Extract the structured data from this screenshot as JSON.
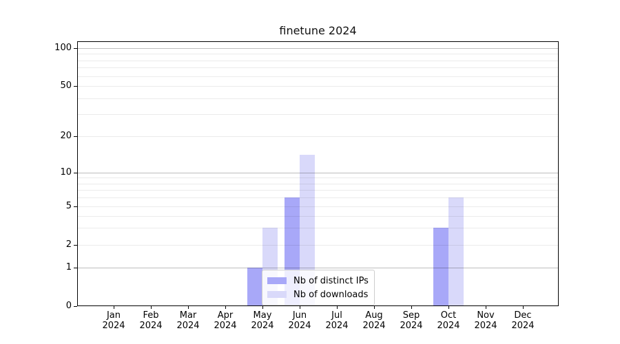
{
  "chart_data": {
    "type": "bar",
    "title": "finetune 2024",
    "months": [
      "Jan",
      "Feb",
      "Mar",
      "Apr",
      "May",
      "Jun",
      "Jul",
      "Aug",
      "Sep",
      "Oct",
      "Nov",
      "Dec"
    ],
    "year_label": "2024",
    "series": [
      {
        "name": "Nb of distinct IPs",
        "slug": "distinct-ips",
        "color": "#a8a8f8",
        "values": [
          0,
          0,
          0,
          0,
          1,
          6,
          0,
          0,
          0,
          3,
          0,
          0
        ]
      },
      {
        "name": "Nb of downloads",
        "slug": "downloads",
        "color": "#d9d9fa",
        "values": [
          0,
          0,
          0,
          0,
          3,
          14,
          0,
          0,
          0,
          6,
          0,
          0
        ]
      }
    ],
    "yticks": [
      0,
      1,
      2,
      5,
      10,
      20,
      50,
      100
    ],
    "minor_yticks": [
      3,
      4,
      6,
      7,
      8,
      9,
      30,
      40,
      60,
      70,
      80,
      90
    ],
    "major_grid_values": [
      1,
      10,
      100
    ],
    "yscale": "log-like",
    "ylim": [
      0,
      100
    ],
    "grid": true,
    "legend_location": "lower center"
  },
  "colors": {
    "bar_distinct_ips": "#a8a8f8",
    "bar_downloads": "#d9d9fa",
    "major_grid": "rgba(0,0,0,0.26)",
    "minor_grid": "rgba(0,0,0,0.08)",
    "spine": "#000000",
    "legend_border": "#cccccc",
    "legend_background": "rgba(255,255,255,0.8)"
  }
}
